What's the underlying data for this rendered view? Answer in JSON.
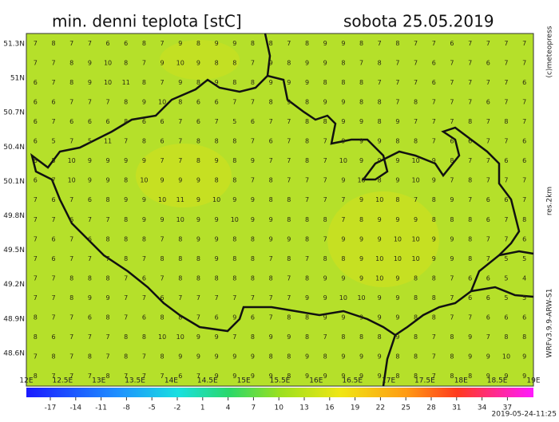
{
  "header": {
    "title": "min. denni teplota [stC]",
    "date": "sobota 25.05.2019"
  },
  "map": {
    "lat_labels": [
      "51.3N",
      "51N",
      "50.7N",
      "50.4N",
      "50.1N",
      "49.8N",
      "49.5N",
      "49.2N",
      "48.9N",
      "48.6N"
    ],
    "lon_labels": [
      "12E",
      "12.5E",
      "13E",
      "13.5E",
      "14E",
      "14.5E",
      "15E",
      "15.5E",
      "16E",
      "16.5E",
      "17E",
      "17.5E",
      "18E",
      "18.5E",
      "19E"
    ],
    "grid": [
      [
        7,
        8,
        7,
        7,
        6,
        6,
        8,
        7,
        9,
        8,
        9,
        9,
        8,
        8,
        7,
        8,
        9,
        9,
        8,
        7,
        8,
        7,
        7,
        6,
        7,
        7,
        7,
        7
      ],
      [
        7,
        7,
        8,
        9,
        10,
        8,
        7,
        9,
        10,
        9,
        8,
        8,
        7,
        9,
        8,
        9,
        9,
        8,
        7,
        8,
        7,
        7,
        6,
        7,
        7,
        6,
        7,
        7
      ],
      [
        6,
        7,
        8,
        9,
        10,
        11,
        8,
        7,
        9,
        8,
        9,
        8,
        8,
        9,
        9,
        9,
        8,
        8,
        8,
        7,
        7,
        7,
        6,
        7,
        7,
        7,
        7,
        6
      ],
      [
        6,
        6,
        7,
        7,
        7,
        8,
        9,
        10,
        8,
        6,
        6,
        7,
        7,
        8,
        9,
        8,
        9,
        9,
        8,
        8,
        7,
        8,
        7,
        7,
        7,
        6,
        7,
        7
      ],
      [
        6,
        7,
        6,
        6,
        6,
        8,
        6,
        6,
        7,
        6,
        7,
        5,
        6,
        7,
        7,
        8,
        8,
        9,
        9,
        8,
        9,
        7,
        7,
        7,
        8,
        7,
        8,
        7
      ],
      [
        6,
        5,
        7,
        5,
        11,
        7,
        8,
        6,
        7,
        8,
        8,
        8,
        7,
        6,
        7,
        8,
        7,
        9,
        9,
        9,
        8,
        8,
        7,
        6,
        6,
        7,
        7,
        6
      ],
      [
        6,
        5,
        10,
        9,
        9,
        9,
        9,
        7,
        7,
        8,
        9,
        8,
        9,
        7,
        7,
        8,
        7,
        10,
        9,
        9,
        9,
        10,
        9,
        8,
        7,
        7,
        6,
        6
      ],
      [
        6,
        7,
        10,
        9,
        9,
        8,
        10,
        9,
        9,
        9,
        8,
        8,
        7,
        8,
        7,
        7,
        7,
        9,
        10,
        8,
        9,
        10,
        9,
        7,
        8,
        7,
        7,
        7
      ],
      [
        7,
        6,
        7,
        6,
        8,
        9,
        9,
        10,
        11,
        9,
        10,
        9,
        9,
        8,
        8,
        7,
        7,
        7,
        9,
        10,
        8,
        7,
        8,
        9,
        7,
        6,
        6,
        7
      ],
      [
        7,
        7,
        6,
        7,
        7,
        8,
        9,
        9,
        10,
        9,
        9,
        10,
        9,
        9,
        8,
        8,
        8,
        7,
        8,
        9,
        9,
        9,
        8,
        8,
        8,
        6,
        7,
        8
      ],
      [
        7,
        6,
        7,
        6,
        8,
        8,
        8,
        7,
        8,
        9,
        9,
        8,
        8,
        9,
        9,
        8,
        7,
        9,
        9,
        9,
        10,
        10,
        9,
        9,
        8,
        7,
        7,
        6
      ],
      [
        7,
        6,
        7,
        7,
        7,
        8,
        7,
        8,
        8,
        8,
        9,
        8,
        8,
        7,
        8,
        7,
        8,
        8,
        9,
        10,
        10,
        10,
        9,
        9,
        8,
        7,
        5,
        5
      ],
      [
        7,
        7,
        8,
        8,
        8,
        7,
        6,
        7,
        8,
        8,
        8,
        8,
        8,
        8,
        7,
        8,
        9,
        9,
        9,
        10,
        9,
        8,
        8,
        7,
        6,
        6,
        5,
        4
      ],
      [
        7,
        7,
        8,
        9,
        9,
        7,
        7,
        6,
        7,
        7,
        7,
        7,
        7,
        7,
        7,
        9,
        9,
        10,
        10,
        9,
        9,
        8,
        8,
        7,
        6,
        6,
        5,
        5
      ],
      [
        8,
        7,
        7,
        6,
        8,
        7,
        6,
        8,
        8,
        7,
        6,
        9,
        6,
        7,
        8,
        8,
        9,
        9,
        9,
        9,
        9,
        8,
        8,
        7,
        7,
        6,
        6,
        6
      ],
      [
        8,
        6,
        7,
        7,
        7,
        8,
        8,
        10,
        10,
        9,
        9,
        7,
        8,
        9,
        9,
        8,
        7,
        8,
        8,
        8,
        9,
        8,
        7,
        8,
        9,
        7,
        8,
        8
      ],
      [
        7,
        8,
        7,
        8,
        7,
        8,
        7,
        8,
        9,
        9,
        9,
        9,
        9,
        8,
        8,
        9,
        8,
        9,
        9,
        9,
        8,
        8,
        7,
        8,
        9,
        9,
        10,
        9
      ],
      [
        8,
        7,
        7,
        7,
        8,
        7,
        7,
        7,
        6,
        7,
        9,
        9,
        9,
        9,
        8,
        9,
        9,
        9,
        9,
        9,
        8,
        8,
        7,
        8,
        8,
        9,
        9,
        9
      ]
    ]
  },
  "colorbar": {
    "labels": [
      -17,
      -14,
      -11,
      -8,
      -5,
      -2,
      1,
      4,
      7,
      10,
      13,
      16,
      19,
      22,
      25,
      28,
      31,
      34,
      37
    ]
  },
  "side": {
    "copyright": "(c)meteopress",
    "resolution": "res.2km",
    "model": "WRFv3.9.9-ARW-S1",
    "timestamp": "2019-05-24-11:25"
  }
}
